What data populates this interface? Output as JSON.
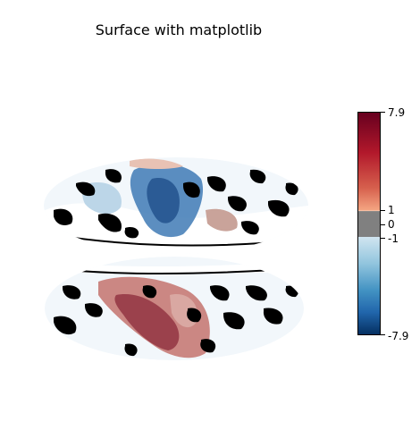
{
  "title": "Surface with matplotlib",
  "colorbar": {
    "ticks": [
      "7.9",
      "1",
      "0",
      "-1",
      "-7.9"
    ],
    "colormap": "RdBu_r",
    "threshold_color": "#808080"
  },
  "hemispheres": [
    "left-hemisphere-inflated-surface",
    "right-hemisphere-inflated-surface"
  ]
}
